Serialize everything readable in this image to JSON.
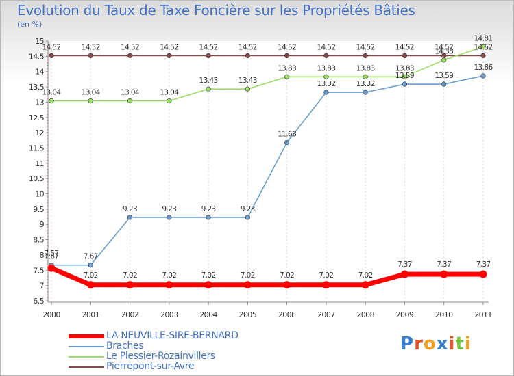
{
  "title": "Evolution du Taux de Taxe Foncière sur les Propriétés Bâties",
  "subtitle": "(en %)",
  "logo": "Proxiti",
  "colors": {
    "title": "#4472c4"
  },
  "chart_data": {
    "type": "line",
    "title": "Evolution du Taux de Taxe Foncière sur les Propriétés Bâties",
    "ylabel": "(en %)",
    "xlabel": "",
    "ylim": [
      6.5,
      15
    ],
    "yticks": [
      "6.5",
      "7",
      "7.5",
      "8",
      "8.5",
      "9",
      "9.5",
      "10",
      "10.5",
      "11",
      "11.5",
      "12",
      "12.5",
      "13",
      "13.5",
      "14",
      "14.5",
      "15"
    ],
    "categories": [
      "2000",
      "2001",
      "2002",
      "2003",
      "2004",
      "2005",
      "2006",
      "2007",
      "2008",
      "2009",
      "2010",
      "2011"
    ],
    "legend_position": "bottom",
    "series": [
      {
        "name": "LA NEUVILLE-SIRE-BERNARD",
        "color": "#ff0000",
        "thick": true,
        "values": [
          7.57,
          7.02,
          7.02,
          7.02,
          7.02,
          7.02,
          7.02,
          7.02,
          7.02,
          7.37,
          7.37,
          7.37
        ],
        "labels": [
          "7.57",
          "7.02",
          "7.02",
          "7.02",
          "7.02",
          "7.02",
          "7.02",
          "7.02",
          "7.02",
          "7.37",
          "7.37",
          "7.37"
        ]
      },
      {
        "name": "Braches",
        "color": "#6a9fd0",
        "thick": false,
        "values": [
          7.67,
          7.67,
          9.23,
          9.23,
          9.23,
          9.23,
          11.68,
          13.32,
          13.32,
          13.59,
          13.59,
          13.86
        ],
        "labels": [
          "7.67",
          "7.67",
          "9.23",
          "9.23",
          "9.23",
          "9.23",
          "11.68",
          "13.32",
          "13.32",
          "13.59",
          "13.59",
          "13.86"
        ]
      },
      {
        "name": "Le Plessier-Rozainvillers",
        "color": "#99dd66",
        "thick": false,
        "values": [
          13.04,
          13.04,
          13.04,
          13.04,
          13.43,
          13.43,
          13.83,
          13.83,
          13.83,
          13.83,
          14.38,
          14.81
        ],
        "labels": [
          "13.04",
          "13.04",
          "13.04",
          "13.04",
          "13.43",
          "13.43",
          "13.83",
          "13.83",
          "13.83",
          "13.83",
          "14.38",
          "14.81"
        ]
      },
      {
        "name": "Pierrepont-sur-Avre",
        "color": "#8b4a4a",
        "thick": false,
        "values": [
          14.52,
          14.52,
          14.52,
          14.52,
          14.52,
          14.52,
          14.52,
          14.52,
          14.52,
          14.52,
          14.52,
          14.52
        ],
        "labels": [
          "14.52",
          "14.52",
          "14.52",
          "14.52",
          "14.52",
          "14.52",
          "14.52",
          "14.52",
          "14.52",
          "14.52",
          "14.52",
          "14.52"
        ]
      }
    ]
  }
}
